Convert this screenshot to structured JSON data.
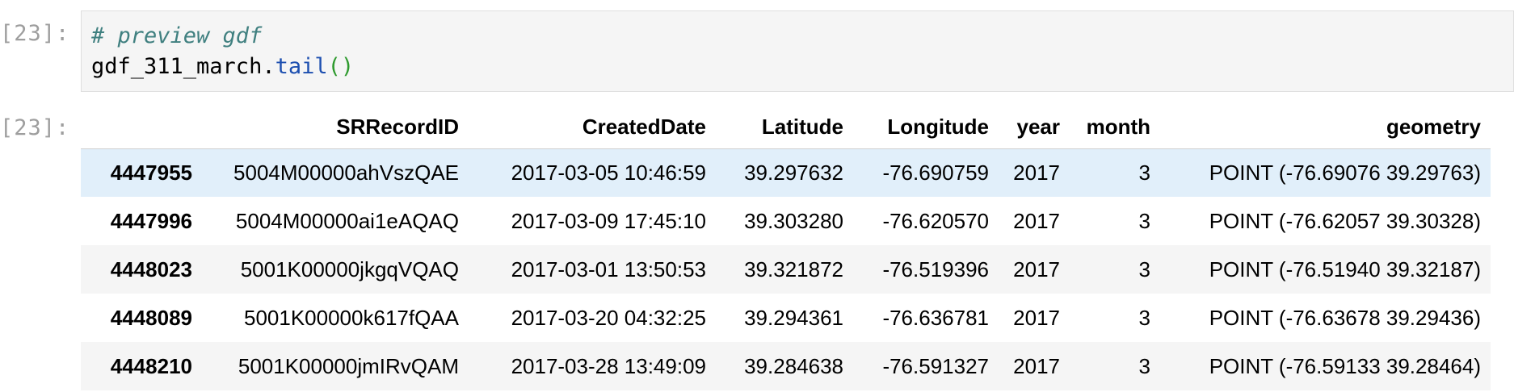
{
  "input_prompt": "[23]:",
  "output_prompt": "[23]:",
  "code": {
    "comment": "# preview gdf",
    "object": "gdf_311_march",
    "dot": ".",
    "method": "tail",
    "parens": "()"
  },
  "table": {
    "index_header": "",
    "columns": [
      "SRRecordID",
      "CreatedDate",
      "Latitude",
      "Longitude",
      "year",
      "month",
      "geometry"
    ],
    "rows": [
      {
        "index": "4447955",
        "cells": [
          "5004M00000ahVszQAE",
          "2017-03-05 10:46:59",
          "39.297632",
          "-76.690759",
          "2017",
          "3",
          "POINT (-76.69076 39.29763)"
        ]
      },
      {
        "index": "4447996",
        "cells": [
          "5004M00000ai1eAQAQ",
          "2017-03-09 17:45:10",
          "39.303280",
          "-76.620570",
          "2017",
          "3",
          "POINT (-76.62057 39.30328)"
        ]
      },
      {
        "index": "4448023",
        "cells": [
          "5001K00000jkgqVQAQ",
          "2017-03-01 13:50:53",
          "39.321872",
          "-76.519396",
          "2017",
          "3",
          "POINT (-76.51940 39.32187)"
        ]
      },
      {
        "index": "4448089",
        "cells": [
          "5001K00000k617fQAA",
          "2017-03-20 04:32:25",
          "39.294361",
          "-76.636781",
          "2017",
          "3",
          "POINT (-76.63678 39.29436)"
        ]
      },
      {
        "index": "4448210",
        "cells": [
          "5001K00000jmIRvQAM",
          "2017-03-28 13:49:09",
          "39.284638",
          "-76.591327",
          "2017",
          "3",
          "POINT (-76.59133 39.28464)"
        ]
      }
    ]
  },
  "colors": {
    "code_background": "#f5f5f5",
    "prompt": "#9e9e9e",
    "comment": "#408080",
    "method": "#1d4fb0",
    "paren": "#2e9a2e",
    "hover_row": "#e1effa",
    "striped_row": "#f5f5f5"
  }
}
